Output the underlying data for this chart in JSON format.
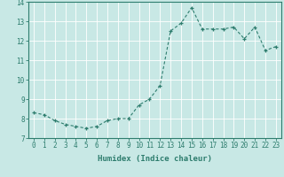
{
  "xlabel": "Humidex (Indice chaleur)",
  "ylabel": "",
  "x": [
    0,
    1,
    2,
    3,
    4,
    5,
    6,
    7,
    8,
    9,
    10,
    11,
    12,
    13,
    14,
    15,
    16,
    17,
    18,
    19,
    20,
    21,
    22,
    23
  ],
  "y": [
    8.3,
    8.2,
    7.9,
    7.7,
    7.6,
    7.5,
    7.6,
    7.9,
    8.0,
    8.0,
    8.7,
    9.0,
    9.7,
    12.5,
    12.9,
    13.7,
    12.6,
    12.6,
    12.6,
    12.7,
    12.1,
    12.7,
    11.5,
    11.7
  ],
  "ylim": [
    7,
    14
  ],
  "xlim": [
    -0.5,
    23.5
  ],
  "yticks": [
    7,
    8,
    9,
    10,
    11,
    12,
    13,
    14
  ],
  "xticks": [
    0,
    1,
    2,
    3,
    4,
    5,
    6,
    7,
    8,
    9,
    10,
    11,
    12,
    13,
    14,
    15,
    16,
    17,
    18,
    19,
    20,
    21,
    22,
    23
  ],
  "line_color": "#2e7d6e",
  "marker": "+",
  "marker_color": "#2e7d6e",
  "bg_color": "#c8e8e5",
  "grid_color": "#ffffff",
  "axis_color": "#2e7d6e",
  "tick_color": "#2e7d6e",
  "label_color": "#2e7d6e",
  "fontsize_labels": 6.5,
  "fontsize_ticks": 5.5
}
